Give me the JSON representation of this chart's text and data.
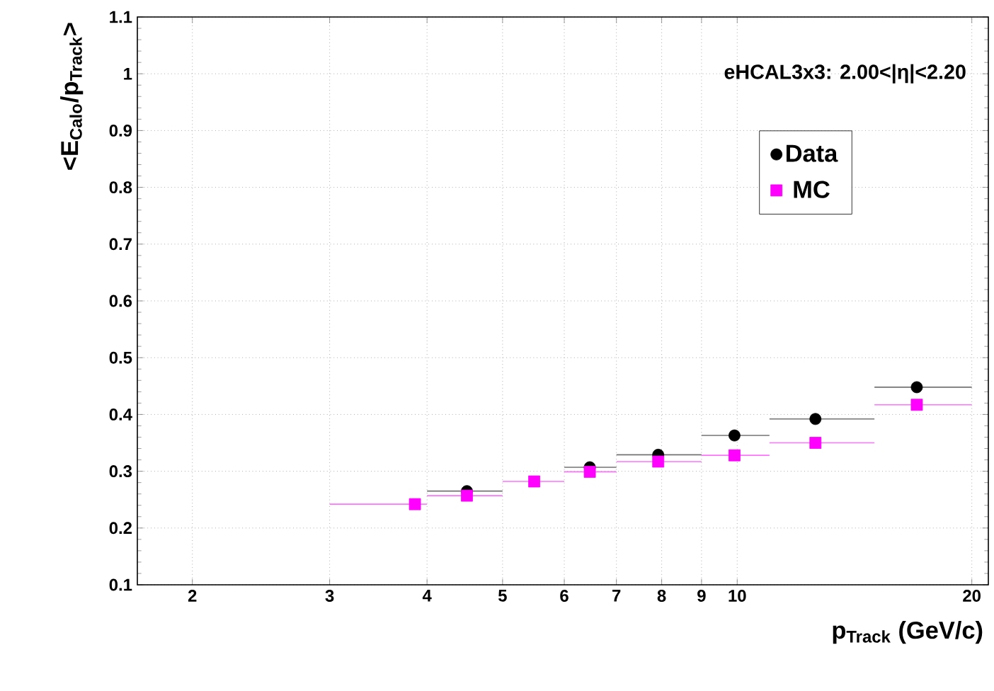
{
  "chart_data": {
    "type": "scatter",
    "xlabel": "p$_{Track}$ (GeV/c)",
    "ylabel": "<E$_{Calo}$/p$_{Track}$>",
    "annotations": [
      "eHCAL3x3: 2.00<|η|<2.20"
    ],
    "log": "x",
    "grid": true,
    "legend": "top right",
    "xlim": [
      1.7,
      21
    ],
    "ylim": [
      0.1,
      1.1
    ],
    "xticks": [
      2,
      3,
      4,
      5,
      6,
      7,
      8,
      9,
      10,
      20
    ],
    "yticks": [
      0.1,
      0.2,
      0.3,
      0.4,
      0.5,
      0.6,
      0.7,
      0.8,
      0.9,
      1,
      1.1
    ],
    "series": [
      {
        "name": "Data",
        "color": "#000000",
        "marker": "circle",
        "x": [
          null,
          4.5,
          null,
          6.47,
          7.92,
          9.92,
          12.6,
          17.0
        ],
        "values": [
          null,
          0.265,
          null,
          0.307,
          0.329,
          0.363,
          0.392,
          0.448
        ],
        "xerrors": [
          null,
          [
            4,
            5
          ],
          null,
          [
            6,
            7
          ],
          [
            7,
            9
          ],
          [
            9,
            11
          ],
          [
            11,
            15
          ],
          [
            15,
            20
          ]
        ]
      },
      {
        "name": "MC",
        "color": "#ff00ff",
        "marker": "square",
        "x": [
          3.86,
          4.5,
          5.49,
          6.47,
          7.92,
          9.92,
          12.6,
          17.0
        ],
        "values": [
          0.242,
          0.257,
          0.282,
          0.299,
          0.317,
          0.328,
          0.35,
          0.417
        ],
        "xerrors": [
          [
            3,
            4
          ],
          [
            4,
            5
          ],
          [
            5,
            6
          ],
          [
            6,
            7
          ],
          [
            7,
            9
          ],
          [
            9,
            11
          ],
          [
            11,
            15
          ],
          [
            15,
            20
          ]
        ]
      }
    ]
  }
}
